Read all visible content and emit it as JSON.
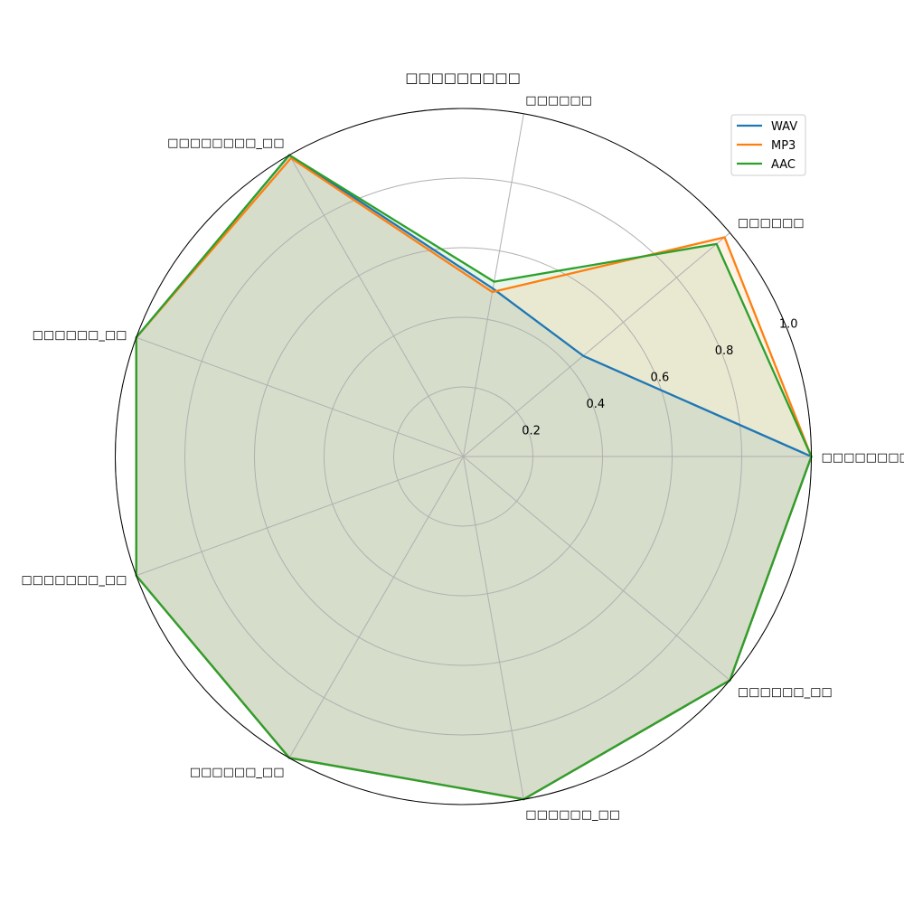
{
  "chart_data": {
    "type": "radar",
    "title": "□□□□□□□□□",
    "categories": [
      "□□□□□□□□",
      "□□□□□□",
      "□□□□□□",
      "□□□□□□□□_□□",
      "□□□□□□_□□",
      "□□□□□□□_□□",
      "□□□□□□_□□",
      "□□□□□□_□□",
      "□□□□□□_□□"
    ],
    "rlim": [
      0,
      1.0
    ],
    "rticks": [
      "0.2",
      "0.4",
      "0.6",
      "0.8",
      "1.0"
    ],
    "rtick_values": [
      0.2,
      0.4,
      0.6,
      0.8,
      1.0
    ],
    "grid": true,
    "legend_position": "top-right",
    "series": [
      {
        "name": "WAV",
        "color": "#1f77b4",
        "values": [
          1.0,
          0.45,
          0.49,
          1.0,
          1.0,
          1.0,
          1.0,
          1.0,
          1.0
        ]
      },
      {
        "name": "MP3",
        "color": "#ff7f0e",
        "values": [
          1.0,
          0.98,
          0.48,
          0.99,
          1.0,
          1.0,
          1.0,
          1.0,
          1.0
        ]
      },
      {
        "name": "AAC",
        "color": "#2ca02c",
        "values": [
          1.0,
          0.95,
          0.51,
          1.0,
          1.0,
          1.0,
          1.0,
          1.0,
          1.0
        ]
      }
    ]
  }
}
